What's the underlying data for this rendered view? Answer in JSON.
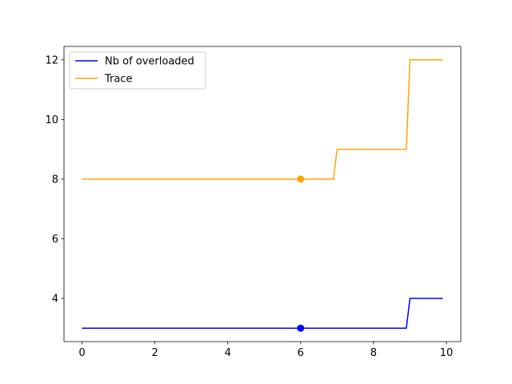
{
  "chart_data": {
    "type": "line",
    "title": "",
    "xlabel": "",
    "ylabel": "",
    "xlim": [
      -0.495,
      10.395
    ],
    "ylim": [
      2.55,
      12.45
    ],
    "xticks": [
      0,
      2,
      4,
      6,
      8,
      10
    ],
    "yticks": [
      4,
      6,
      8,
      10,
      12
    ],
    "grid": false,
    "legend": {
      "placement": "upper-left"
    },
    "series": [
      {
        "name": "Nb of overloaded",
        "color": "#0000ff",
        "x": [
          0,
          0.1,
          0.2,
          0.3,
          0.4,
          0.5,
          0.6,
          0.7,
          0.8,
          0.9,
          1.0,
          1.1,
          1.2,
          1.3,
          1.4,
          1.5,
          1.6,
          1.7,
          1.8,
          1.9,
          2.0,
          2.1,
          2.2,
          2.3,
          2.4,
          2.5,
          2.6,
          2.7,
          2.8,
          2.9,
          3.0,
          3.1,
          3.2,
          3.3,
          3.4,
          3.5,
          3.6,
          3.7,
          3.8,
          3.9,
          4.0,
          4.1,
          4.2,
          4.3,
          4.4,
          4.5,
          4.6,
          4.7,
          4.8,
          4.9,
          5.0,
          5.1,
          5.2,
          5.3,
          5.4,
          5.5,
          5.6,
          5.7,
          5.8,
          5.9,
          6.0,
          6.1,
          6.2,
          6.3,
          6.4,
          6.5,
          6.6,
          6.7,
          6.8,
          6.9,
          7.0,
          7.1,
          7.2,
          7.3,
          7.4,
          7.5,
          7.6,
          7.7,
          7.8,
          7.9,
          8.0,
          8.1,
          8.2,
          8.3,
          8.4,
          8.5,
          8.6,
          8.7,
          8.8,
          8.9,
          9.0,
          9.1,
          9.2,
          9.3,
          9.4,
          9.5,
          9.6,
          9.7,
          9.8,
          9.9
        ],
        "y": [
          3,
          3,
          3,
          3,
          3,
          3,
          3,
          3,
          3,
          3,
          3,
          3,
          3,
          3,
          3,
          3,
          3,
          3,
          3,
          3,
          3,
          3,
          3,
          3,
          3,
          3,
          3,
          3,
          3,
          3,
          3,
          3,
          3,
          3,
          3,
          3,
          3,
          3,
          3,
          3,
          3,
          3,
          3,
          3,
          3,
          3,
          3,
          3,
          3,
          3,
          3,
          3,
          3,
          3,
          3,
          3,
          3,
          3,
          3,
          3,
          3,
          3,
          3,
          3,
          3,
          3,
          3,
          3,
          3,
          3,
          3,
          3,
          3,
          3,
          3,
          3,
          3,
          3,
          3,
          3,
          3,
          3,
          3,
          3,
          3,
          3,
          3,
          3,
          3,
          3,
          4,
          4,
          4,
          4,
          4,
          4,
          4,
          4,
          4,
          4
        ],
        "marker": {
          "x": 6,
          "y": 3
        }
      },
      {
        "name": "Trace",
        "color": "#ffa500",
        "x": [
          0,
          0.1,
          0.2,
          0.3,
          0.4,
          0.5,
          0.6,
          0.7,
          0.8,
          0.9,
          1.0,
          1.1,
          1.2,
          1.3,
          1.4,
          1.5,
          1.6,
          1.7,
          1.8,
          1.9,
          2.0,
          2.1,
          2.2,
          2.3,
          2.4,
          2.5,
          2.6,
          2.7,
          2.8,
          2.9,
          3.0,
          3.1,
          3.2,
          3.3,
          3.4,
          3.5,
          3.6,
          3.7,
          3.8,
          3.9,
          4.0,
          4.1,
          4.2,
          4.3,
          4.4,
          4.5,
          4.6,
          4.7,
          4.8,
          4.9,
          5.0,
          5.1,
          5.2,
          5.3,
          5.4,
          5.5,
          5.6,
          5.7,
          5.8,
          5.9,
          6.0,
          6.1,
          6.2,
          6.3,
          6.4,
          6.5,
          6.6,
          6.7,
          6.8,
          6.9,
          7.0,
          7.1,
          7.2,
          7.3,
          7.4,
          7.5,
          7.6,
          7.7,
          7.8,
          7.9,
          8.0,
          8.1,
          8.2,
          8.3,
          8.4,
          8.5,
          8.6,
          8.7,
          8.8,
          8.9,
          9.0,
          9.1,
          9.2,
          9.3,
          9.4,
          9.5,
          9.6,
          9.7,
          9.8,
          9.9
        ],
        "y": [
          8,
          8,
          8,
          8,
          8,
          8,
          8,
          8,
          8,
          8,
          8,
          8,
          8,
          8,
          8,
          8,
          8,
          8,
          8,
          8,
          8,
          8,
          8,
          8,
          8,
          8,
          8,
          8,
          8,
          8,
          8,
          8,
          8,
          8,
          8,
          8,
          8,
          8,
          8,
          8,
          8,
          8,
          8,
          8,
          8,
          8,
          8,
          8,
          8,
          8,
          8,
          8,
          8,
          8,
          8,
          8,
          8,
          8,
          8,
          8,
          8,
          8,
          8,
          8,
          8,
          8,
          8,
          8,
          8,
          8,
          9,
          9,
          9,
          9,
          9,
          9,
          9,
          9,
          9,
          9,
          9,
          9,
          9,
          9,
          9,
          9,
          9,
          9,
          9,
          9,
          12,
          12,
          12,
          12,
          12,
          12,
          12,
          12,
          12,
          12
        ],
        "marker": {
          "x": 6,
          "y": 8
        }
      }
    ]
  }
}
